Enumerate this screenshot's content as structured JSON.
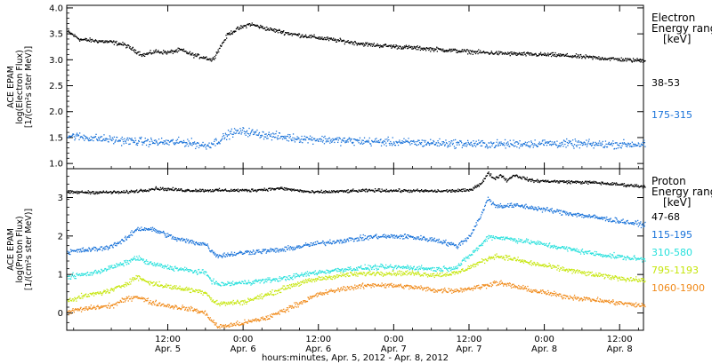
{
  "chart_data": [
    {
      "type": "scatter",
      "panel": "electron",
      "ylabel_lines": [
        "ACE EPAM",
        "log(Electron Flux)",
        "[1/(cm²s ster MeV)]"
      ],
      "legend_title_lines": [
        "Electron",
        "Energy range",
        "[keV]"
      ],
      "ylim": [
        0.9,
        4.05
      ],
      "yticks": [
        1.0,
        1.5,
        2.0,
        2.5,
        3.0,
        3.5,
        4.0
      ],
      "ytick_labels": [
        "1.0",
        "1.5",
        "2.0",
        "2.5",
        "3.0",
        "3.5",
        "4.0"
      ],
      "series": [
        {
          "name": "38-53",
          "color": "#000000",
          "noise": 0.03,
          "points": [
            [
              -4,
              3.55
            ],
            [
              -2,
              3.4
            ],
            [
              0,
              3.38
            ],
            [
              3,
              3.35
            ],
            [
              5,
              3.3
            ],
            [
              8,
              3.1
            ],
            [
              10,
              3.17
            ],
            [
              12,
              3.15
            ],
            [
              14,
              3.2
            ],
            [
              16,
              3.1
            ],
            [
              18,
              3.05
            ],
            [
              19,
              3.0
            ],
            [
              20,
              3.2
            ],
            [
              21.5,
              3.5
            ],
            [
              23,
              3.6
            ],
            [
              25,
              3.7
            ],
            [
              28,
              3.6
            ],
            [
              32,
              3.5
            ],
            [
              38,
              3.4
            ],
            [
              44,
              3.3
            ],
            [
              50,
              3.25
            ],
            [
              56,
              3.2
            ],
            [
              62,
              3.15
            ],
            [
              68,
              3.12
            ],
            [
              74,
              3.1
            ],
            [
              80,
              3.05
            ],
            [
              86,
              3.0
            ],
            [
              88,
              3.0
            ]
          ]
        },
        {
          "name": "175-315",
          "color": "#1a73d9",
          "noise": 0.06,
          "points": [
            [
              -4,
              1.55
            ],
            [
              0,
              1.5
            ],
            [
              5,
              1.45
            ],
            [
              10,
              1.42
            ],
            [
              15,
              1.42
            ],
            [
              18,
              1.35
            ],
            [
              20,
              1.45
            ],
            [
              22,
              1.6
            ],
            [
              24,
              1.63
            ],
            [
              28,
              1.55
            ],
            [
              32,
              1.5
            ],
            [
              40,
              1.45
            ],
            [
              48,
              1.42
            ],
            [
              56,
              1.4
            ],
            [
              64,
              1.38
            ],
            [
              72,
              1.4
            ],
            [
              80,
              1.38
            ],
            [
              88,
              1.38
            ]
          ]
        }
      ]
    },
    {
      "type": "scatter",
      "panel": "proton",
      "ylabel_lines": [
        "ACE EPAM",
        "log(Proton Flux)",
        "[1/(cm²s ster MeV)]"
      ],
      "legend_title_lines": [
        "Proton",
        "Energy range",
        "[keV]"
      ],
      "ylim": [
        -0.45,
        3.75
      ],
      "yticks": [
        0,
        1,
        2,
        3
      ],
      "ytick_labels": [
        "0",
        "1",
        "2",
        "3"
      ],
      "series": [
        {
          "name": "47-68",
          "color": "#000000",
          "noise": 0.03,
          "points": [
            [
              -4,
              3.15
            ],
            [
              5,
              3.15
            ],
            [
              8,
              3.2
            ],
            [
              10,
              3.25
            ],
            [
              15,
              3.2
            ],
            [
              25,
              3.2
            ],
            [
              30,
              3.25
            ],
            [
              35,
              3.15
            ],
            [
              45,
              3.2
            ],
            [
              55,
              3.18
            ],
            [
              60,
              3.2
            ],
            [
              62,
              3.4
            ],
            [
              63,
              3.65
            ],
            [
              64,
              3.5
            ],
            [
              65,
              3.6
            ],
            [
              66,
              3.45
            ],
            [
              67,
              3.6
            ],
            [
              70,
              3.45
            ],
            [
              80,
              3.4
            ],
            [
              88,
              3.3
            ]
          ]
        },
        {
          "name": "115-195",
          "color": "#1a73d9",
          "noise": 0.05,
          "points": [
            [
              -4,
              1.6
            ],
            [
              2,
              1.7
            ],
            [
              5,
              1.9
            ],
            [
              7,
              2.2
            ],
            [
              9,
              2.2
            ],
            [
              11,
              2.1
            ],
            [
              13,
              1.95
            ],
            [
              16,
              1.85
            ],
            [
              18,
              1.8
            ],
            [
              19,
              1.6
            ],
            [
              20,
              1.5
            ],
            [
              25,
              1.6
            ],
            [
              30,
              1.65
            ],
            [
              35,
              1.8
            ],
            [
              40,
              1.9
            ],
            [
              45,
              2.0
            ],
            [
              50,
              2.0
            ],
            [
              55,
              1.9
            ],
            [
              58,
              1.75
            ],
            [
              60,
              2.0
            ],
            [
              62,
              2.6
            ],
            [
              63,
              3.0
            ],
            [
              64,
              2.8
            ],
            [
              66,
              2.8
            ],
            [
              68,
              2.8
            ],
            [
              72,
              2.7
            ],
            [
              76,
              2.6
            ],
            [
              80,
              2.5
            ],
            [
              84,
              2.4
            ],
            [
              88,
              2.3
            ]
          ]
        },
        {
          "name": "310-580",
          "color": "#27e0dc",
          "noise": 0.05,
          "points": [
            [
              -4,
              0.95
            ],
            [
              0,
              1.05
            ],
            [
              3,
              1.2
            ],
            [
              5,
              1.3
            ],
            [
              7,
              1.45
            ],
            [
              9,
              1.3
            ],
            [
              12,
              1.2
            ],
            [
              16,
              1.1
            ],
            [
              18,
              1.05
            ],
            [
              19,
              0.85
            ],
            [
              20,
              0.75
            ],
            [
              24,
              0.8
            ],
            [
              30,
              0.9
            ],
            [
              35,
              1.05
            ],
            [
              40,
              1.15
            ],
            [
              45,
              1.2
            ],
            [
              50,
              1.2
            ],
            [
              55,
              1.15
            ],
            [
              58,
              1.2
            ],
            [
              60,
              1.5
            ],
            [
              62,
              1.8
            ],
            [
              63,
              2.0
            ],
            [
              66,
              1.95
            ],
            [
              70,
              1.85
            ],
            [
              75,
              1.7
            ],
            [
              80,
              1.55
            ],
            [
              85,
              1.45
            ],
            [
              88,
              1.4
            ]
          ]
        },
        {
          "name": "795-1193",
          "color": "#c6e60c",
          "noise": 0.05,
          "points": [
            [
              -4,
              0.35
            ],
            [
              0,
              0.5
            ],
            [
              3,
              0.6
            ],
            [
              5,
              0.75
            ],
            [
              7,
              0.95
            ],
            [
              9,
              0.8
            ],
            [
              12,
              0.7
            ],
            [
              16,
              0.6
            ],
            [
              18,
              0.55
            ],
            [
              19,
              0.35
            ],
            [
              20,
              0.25
            ],
            [
              24,
              0.3
            ],
            [
              28,
              0.5
            ],
            [
              32,
              0.75
            ],
            [
              36,
              0.9
            ],
            [
              40,
              1.0
            ],
            [
              45,
              1.05
            ],
            [
              50,
              1.05
            ],
            [
              55,
              1.0
            ],
            [
              58,
              1.05
            ],
            [
              60,
              1.2
            ],
            [
              62,
              1.35
            ],
            [
              64,
              1.5
            ],
            [
              66,
              1.45
            ],
            [
              70,
              1.3
            ],
            [
              75,
              1.15
            ],
            [
              80,
              1.0
            ],
            [
              85,
              0.9
            ],
            [
              88,
              0.85
            ]
          ]
        },
        {
          "name": "1060-1900",
          "color": "#f08a1a",
          "noise": 0.05,
          "points": [
            [
              -4,
              0.05
            ],
            [
              0,
              0.15
            ],
            [
              3,
              0.2
            ],
            [
              5,
              0.35
            ],
            [
              7,
              0.45
            ],
            [
              9,
              0.3
            ],
            [
              12,
              0.2
            ],
            [
              16,
              0.1
            ],
            [
              18,
              0.0
            ],
            [
              19,
              -0.2
            ],
            [
              20,
              -0.35
            ],
            [
              24,
              -0.25
            ],
            [
              28,
              -0.1
            ],
            [
              32,
              0.2
            ],
            [
              36,
              0.5
            ],
            [
              40,
              0.65
            ],
            [
              45,
              0.75
            ],
            [
              50,
              0.7
            ],
            [
              55,
              0.6
            ],
            [
              58,
              0.6
            ],
            [
              60,
              0.65
            ],
            [
              62,
              0.7
            ],
            [
              64,
              0.8
            ],
            [
              66,
              0.75
            ],
            [
              70,
              0.6
            ],
            [
              75,
              0.45
            ],
            [
              80,
              0.35
            ],
            [
              85,
              0.25
            ],
            [
              88,
              0.2
            ]
          ]
        }
      ]
    }
  ],
  "x_axis": {
    "ticks": [
      {
        "h": 12,
        "time": "12:00",
        "date": "Apr. 5"
      },
      {
        "h": 24,
        "time": "0:00",
        "date": "Apr. 6"
      },
      {
        "h": 36,
        "time": "12:00",
        "date": "Apr. 6"
      },
      {
        "h": 48,
        "time": "0:00",
        "date": "Apr. 7"
      },
      {
        "h": 60,
        "time": "12:00",
        "date": "Apr. 7"
      },
      {
        "h": 72,
        "time": "0:00",
        "date": "Apr. 8"
      },
      {
        "h": 84,
        "time": "12:00",
        "date": "Apr. 8"
      }
    ],
    "xlabel": "hours:minutes, Apr.  5, 2012 - Apr.  8, 2012"
  }
}
